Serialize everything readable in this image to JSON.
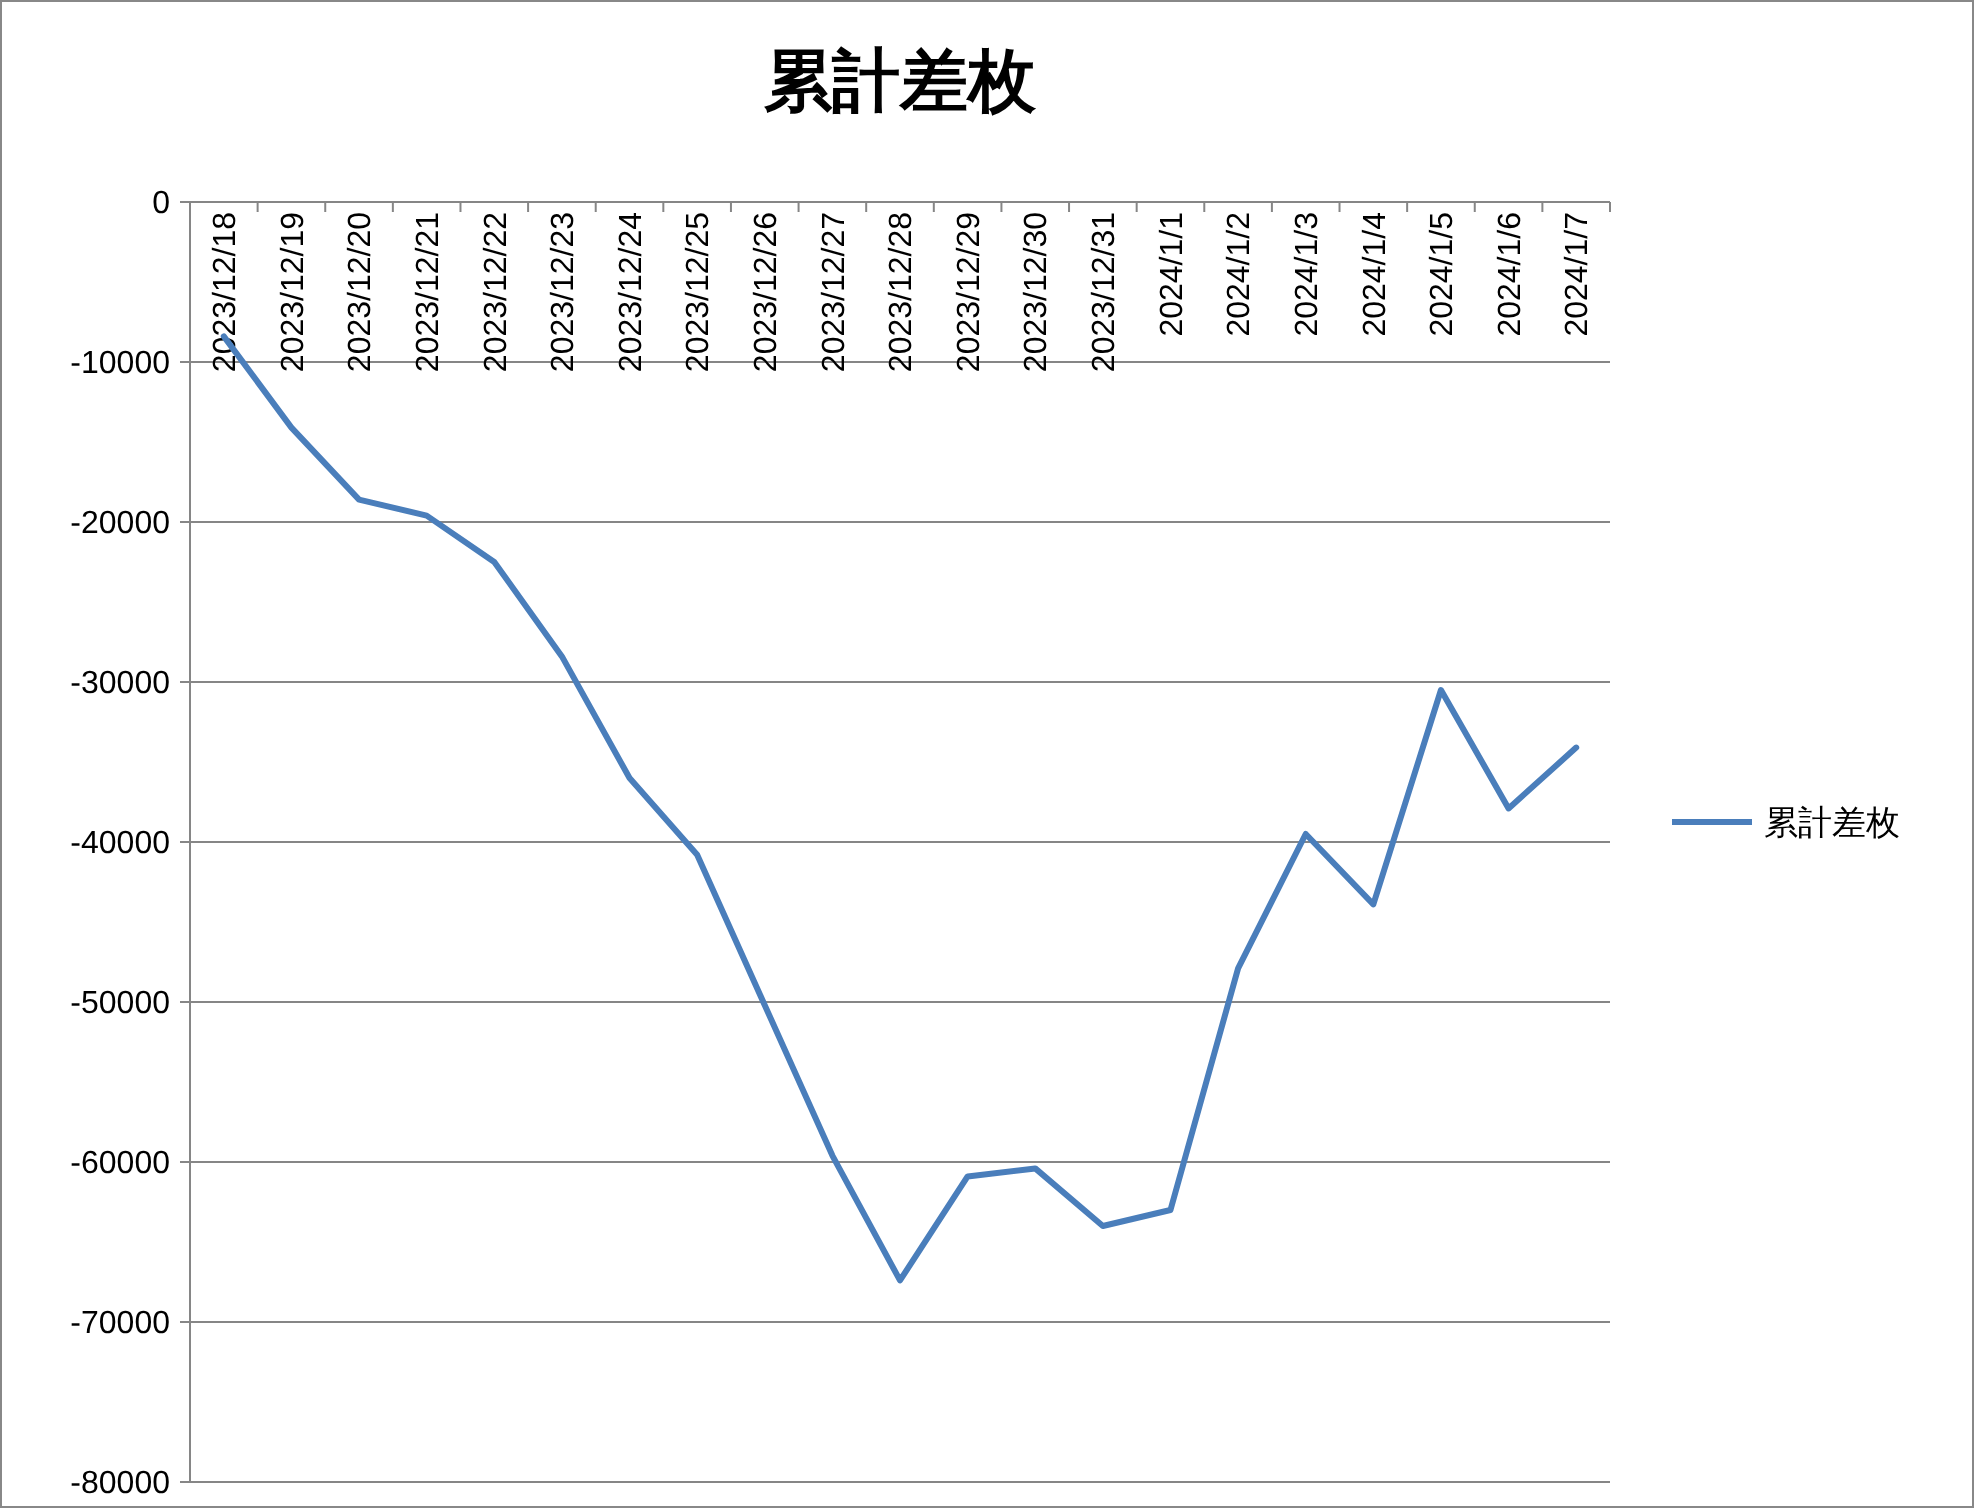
{
  "chart_data": {
    "type": "line",
    "title": "累計差枚",
    "categories": [
      "2023/12/18",
      "2023/12/19",
      "2023/12/20",
      "2023/12/21",
      "2023/12/22",
      "2023/12/23",
      "2023/12/24",
      "2023/12/25",
      "2023/12/26",
      "2023/12/27",
      "2023/12/28",
      "2023/12/29",
      "2023/12/30",
      "2023/12/31",
      "2024/1/1",
      "2024/1/2",
      "2024/1/3",
      "2024/1/4",
      "2024/1/5",
      "2024/1/6",
      "2024/1/7"
    ],
    "series": [
      {
        "name": "累計差枚",
        "color": "#4a7ebb",
        "values": [
          -8400,
          -14100,
          -18600,
          -19600,
          -22500,
          -28400,
          -36000,
          -40800,
          -50200,
          -59600,
          -67400,
          -60900,
          -60400,
          -64000,
          -63000,
          -47900,
          -39500,
          -43900,
          -30500,
          -37900,
          -34100
        ]
      }
    ],
    "ylim": [
      -80000,
      0
    ],
    "yticks": [
      0,
      -10000,
      -20000,
      -30000,
      -40000,
      -50000,
      -60000,
      -70000,
      -80000
    ],
    "grid": "y",
    "legend": "right",
    "marker": "none",
    "line_style": "solid"
  }
}
